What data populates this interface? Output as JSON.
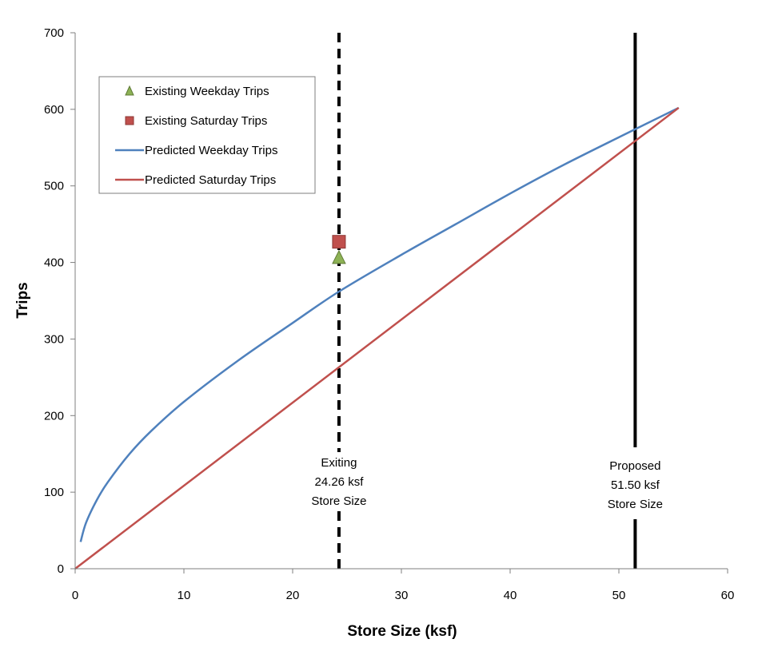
{
  "chart_data": {
    "type": "line",
    "xlabel": "Store Size (ksf)",
    "ylabel": "Trips",
    "xlim": [
      0,
      60
    ],
    "ylim": [
      0,
      700
    ],
    "xticks": [
      "0",
      "10",
      "20",
      "30",
      "40",
      "50",
      "60"
    ],
    "yticks": [
      "0",
      "100",
      "200",
      "300",
      "400",
      "500",
      "600",
      "700"
    ],
    "grid": false,
    "legend_position": "top-left",
    "series": [
      {
        "name": "Existing Weekday Trips",
        "kind": "marker",
        "marker": "triangle",
        "color": "#8DB255",
        "points": [
          {
            "x": 24.26,
            "y": 406
          }
        ]
      },
      {
        "name": "Existing Saturday Trips",
        "kind": "marker",
        "marker": "square",
        "color": "#C0504D",
        "points": [
          {
            "x": 24.26,
            "y": 427
          }
        ]
      },
      {
        "name": "Predicted Weekday Trips",
        "kind": "line",
        "color": "#4F81BD",
        "points": [
          {
            "x": 0.5,
            "y": 35
          },
          {
            "x": 1,
            "y": 60
          },
          {
            "x": 2,
            "y": 90
          },
          {
            "x": 3,
            "y": 113
          },
          {
            "x": 5,
            "y": 150
          },
          {
            "x": 7,
            "y": 180
          },
          {
            "x": 10,
            "y": 218
          },
          {
            "x": 15,
            "y": 272
          },
          {
            "x": 20,
            "y": 321
          },
          {
            "x": 24.26,
            "y": 362
          },
          {
            "x": 30,
            "y": 410
          },
          {
            "x": 35,
            "y": 450
          },
          {
            "x": 40,
            "y": 490
          },
          {
            "x": 45,
            "y": 528
          },
          {
            "x": 51.5,
            "y": 574
          },
          {
            "x": 55.5,
            "y": 602
          }
        ]
      },
      {
        "name": "Predicted Saturday Trips",
        "kind": "line",
        "color": "#C0504D",
        "points": [
          {
            "x": 0,
            "y": 0
          },
          {
            "x": 55.5,
            "y": 602
          }
        ]
      }
    ],
    "reference_lines": [
      {
        "x": 24.26,
        "style": "dashed",
        "color": "#000000",
        "label_lines": [
          "Exiting",
          "24.26 ksf",
          "Store Size"
        ]
      },
      {
        "x": 51.5,
        "style": "solid",
        "color": "#000000",
        "label_lines": [
          "Proposed",
          "51.50 ksf",
          "Store Size"
        ]
      }
    ]
  }
}
